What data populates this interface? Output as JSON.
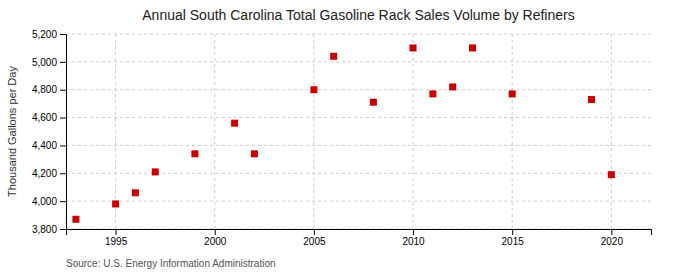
{
  "chart_data": {
    "type": "scatter",
    "title": "Annual South Carolina Total Gasoline Rack Sales Volume by Refiners",
    "ylabel": "Thousand Gallons per Day",
    "annotation": "Source: U.S. Energy Information Administration",
    "x": [
      1993,
      1995,
      1996,
      1997,
      1999,
      2001,
      2002,
      2005,
      2006,
      2008,
      2010,
      2011,
      2012,
      2013,
      2015,
      2019,
      2020
    ],
    "values": [
      3870,
      3980,
      4060,
      4210,
      4340,
      4560,
      4340,
      4800,
      5040,
      4710,
      5100,
      4770,
      4820,
      5100,
      4770,
      4730,
      4190
    ],
    "color": "#cc0000",
    "marker": "square",
    "xlim": [
      1992.5,
      2022
    ],
    "ylim": [
      3800,
      5200
    ],
    "xticks": [
      1995,
      2000,
      2005,
      2010,
      2015,
      2020
    ],
    "yticks": [
      {
        "value": 3800,
        "label": "3,800"
      },
      {
        "value": 4000,
        "label": "4,000"
      },
      {
        "value": 4200,
        "label": "4,200"
      },
      {
        "value": 4400,
        "label": "4,400"
      },
      {
        "value": 4600,
        "label": "4,600"
      },
      {
        "value": 4800,
        "label": "4,800"
      },
      {
        "value": 5000,
        "label": "5,000"
      },
      {
        "value": 5200,
        "label": "5,200"
      }
    ],
    "grid": true
  }
}
